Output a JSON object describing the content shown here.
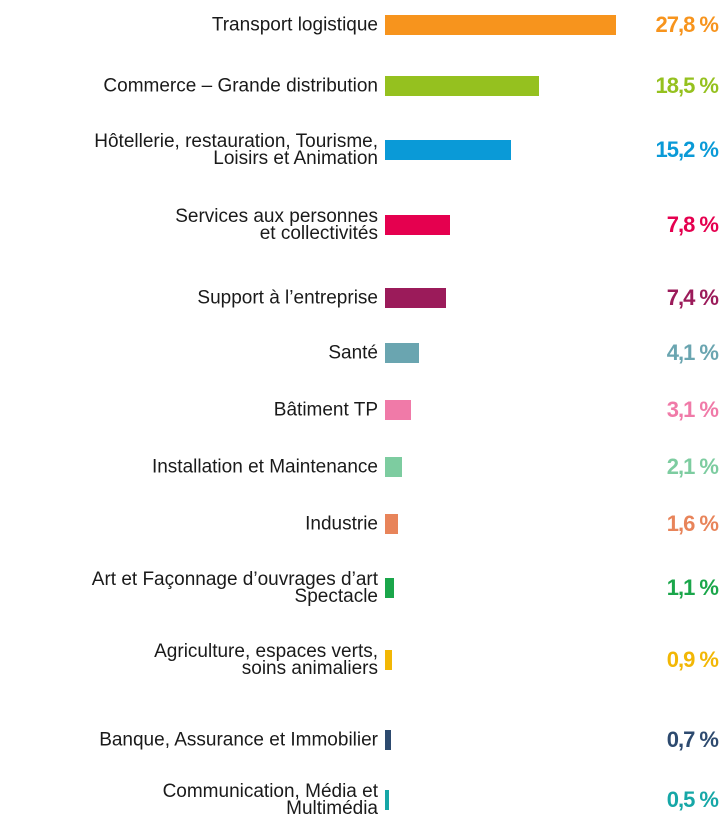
{
  "chart_data": {
    "type": "bar",
    "orientation": "horizontal",
    "categories": [
      "Transport logistique",
      "Commerce – Grande distribution",
      "Hôtellerie, restauration, Tourisme,\nLoisirs et Animation",
      "Services aux personnes\net collectivités",
      "Support à l’entreprise",
      "Santé",
      "Bâtiment TP",
      "Installation et Maintenance",
      "Industrie",
      "Art et Façonnage d’ouvrages d’art\nSpectacle",
      "Agriculture, espaces verts,\nsoins animaliers",
      "Banque, Assurance et Immobilier",
      "Communication, Média et\nMultimédia"
    ],
    "values": [
      27.8,
      18.5,
      15.2,
      7.8,
      7.4,
      4.1,
      3.1,
      2.1,
      1.6,
      1.1,
      0.9,
      0.7,
      0.5
    ],
    "value_labels": [
      "27,8 %",
      "18,5 %",
      "15,2 %",
      "7,8 %",
      "7,4 %",
      "4,1 %",
      "3,1 %",
      "2,1 %",
      "1,6 %",
      "1,1 %",
      "0,9 %",
      "0,7 %",
      "0,5 %"
    ],
    "colors": [
      "#f7941d",
      "#95c11f",
      "#0a9ad7",
      "#e5004f",
      "#9b1b5a",
      "#6aa5b0",
      "#f07aa8",
      "#7dcca0",
      "#e8845a",
      "#1aa64a",
      "#f2b705",
      "#2d4a6f",
      "#16a7a7"
    ]
  }
}
